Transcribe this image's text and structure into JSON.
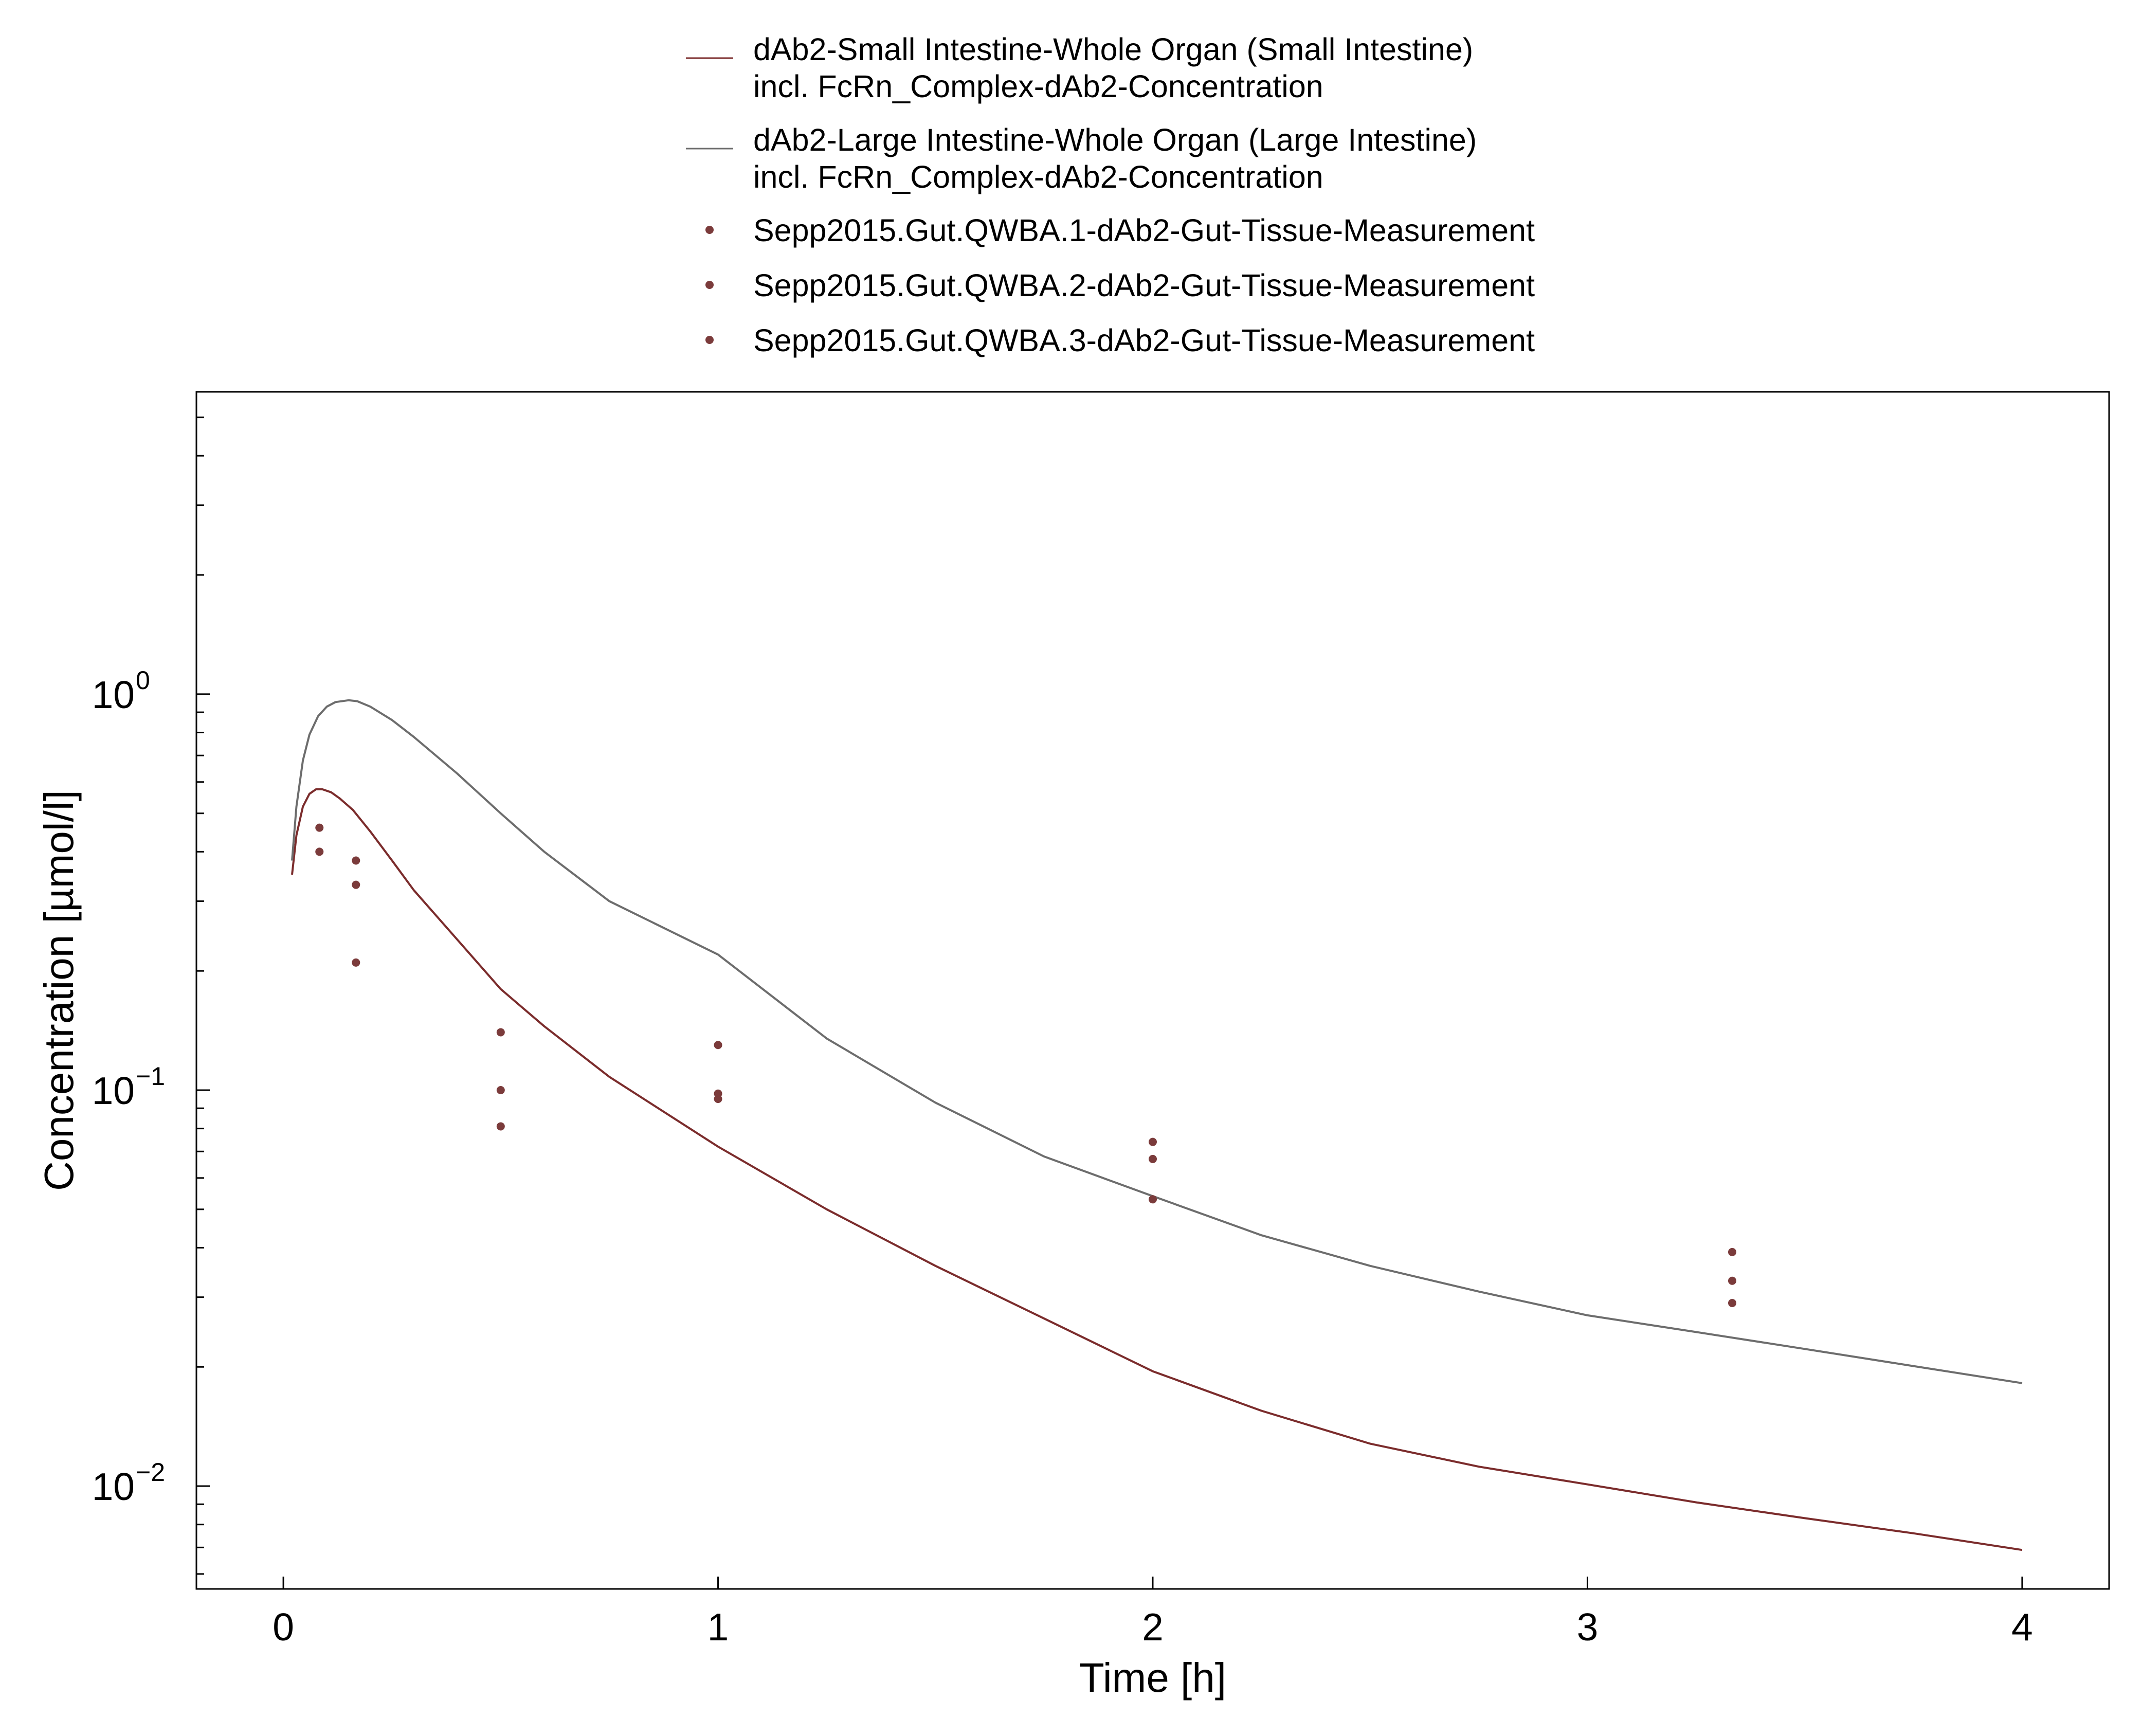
{
  "chart_data": {
    "type": "line",
    "title": "",
    "xlabel": "Time [h]",
    "ylabel": "Concentration [µmol/l]",
    "xlim": [
      -0.2,
      4.2
    ],
    "ylim": [
      0.0055,
      5.8
    ],
    "y_scale": "log",
    "x_ticks": [
      0,
      1,
      2,
      3,
      4
    ],
    "x_tick_labels": [
      "0",
      "1",
      "2",
      "3",
      "4"
    ],
    "y_major_ticks": [
      {
        "value": 1.0,
        "base": "10",
        "exponent": "0"
      },
      {
        "value": 0.1,
        "base": "10",
        "exponent": "−1"
      },
      {
        "value": 0.01,
        "base": "10",
        "exponent": "−2"
      }
    ],
    "grid": false,
    "legend_position": "top",
    "series": [
      {
        "name": "dAb2-Small Intestine-Whole Organ (Small Intestine) incl. FcRn_Complex-dAb2-Concentration",
        "legend_lines": [
          "dAb2-Small Intestine-Whole Organ (Small Intestine)",
          "incl. FcRn_Complex-dAb2-Concentration"
        ],
        "kind": "line",
        "color": "#7b2c2c",
        "x": [
          0.02,
          0.03,
          0.045,
          0.06,
          0.075,
          0.09,
          0.11,
          0.13,
          0.16,
          0.2,
          0.25,
          0.3,
          0.4,
          0.5,
          0.6,
          0.75,
          1.0,
          1.25,
          1.5,
          1.75,
          2.0,
          2.25,
          2.5,
          2.75,
          3.0,
          3.25,
          3.5,
          3.75,
          4.0
        ],
        "y": [
          0.35,
          0.44,
          0.52,
          0.56,
          0.575,
          0.575,
          0.565,
          0.545,
          0.51,
          0.45,
          0.38,
          0.32,
          0.24,
          0.18,
          0.145,
          0.108,
          0.072,
          0.05,
          0.036,
          0.0265,
          0.0195,
          0.0155,
          0.0128,
          0.0112,
          0.0101,
          0.0091,
          0.0083,
          0.0076,
          0.0069
        ]
      },
      {
        "name": "dAb2-Large Intestine-Whole Organ (Large Intestine) incl. FcRn_Complex-dAb2-Concentration",
        "legend_lines": [
          "dAb2-Large Intestine-Whole Organ (Large Intestine)",
          "incl. FcRn_Complex-dAb2-Concentration"
        ],
        "kind": "line",
        "color": "#6d6d6d",
        "x": [
          0.02,
          0.03,
          0.045,
          0.06,
          0.08,
          0.1,
          0.12,
          0.15,
          0.17,
          0.2,
          0.25,
          0.3,
          0.4,
          0.5,
          0.6,
          0.75,
          1.0,
          1.25,
          1.5,
          1.75,
          2.0,
          2.25,
          2.5,
          2.75,
          3.0,
          3.25,
          3.5,
          3.75,
          4.0
        ],
        "y": [
          0.38,
          0.52,
          0.68,
          0.79,
          0.88,
          0.93,
          0.955,
          0.965,
          0.96,
          0.93,
          0.86,
          0.78,
          0.63,
          0.5,
          0.4,
          0.3,
          0.22,
          0.135,
          0.093,
          0.068,
          0.054,
          0.043,
          0.036,
          0.031,
          0.027,
          0.0245,
          0.0222,
          0.0201,
          0.0182
        ]
      },
      {
        "name": "Sepp2015.Gut.QWBA.1-dAb2-Gut-Tissue-Measurement",
        "kind": "scatter",
        "color": "#7b3b3b",
        "x": [
          0.083,
          0.167,
          0.5,
          1.0,
          2.0,
          3.333
        ],
        "y": [
          0.46,
          0.38,
          0.14,
          0.13,
          0.074,
          0.039
        ]
      },
      {
        "name": "Sepp2015.Gut.QWBA.2-dAb2-Gut-Tissue-Measurement",
        "kind": "scatter",
        "color": "#7b3b3b",
        "x": [
          0.083,
          0.167,
          0.5,
          1.0,
          2.0,
          3.333
        ],
        "y": [
          0.4,
          0.33,
          0.1,
          0.098,
          0.067,
          0.033
        ]
      },
      {
        "name": "Sepp2015.Gut.QWBA.3-dAb2-Gut-Tissue-Measurement",
        "kind": "scatter",
        "color": "#7b3b3b",
        "x": [
          0.167,
          0.5,
          1.0,
          2.0,
          3.333
        ],
        "y": [
          0.21,
          0.081,
          0.095,
          0.053,
          0.029
        ]
      }
    ]
  }
}
